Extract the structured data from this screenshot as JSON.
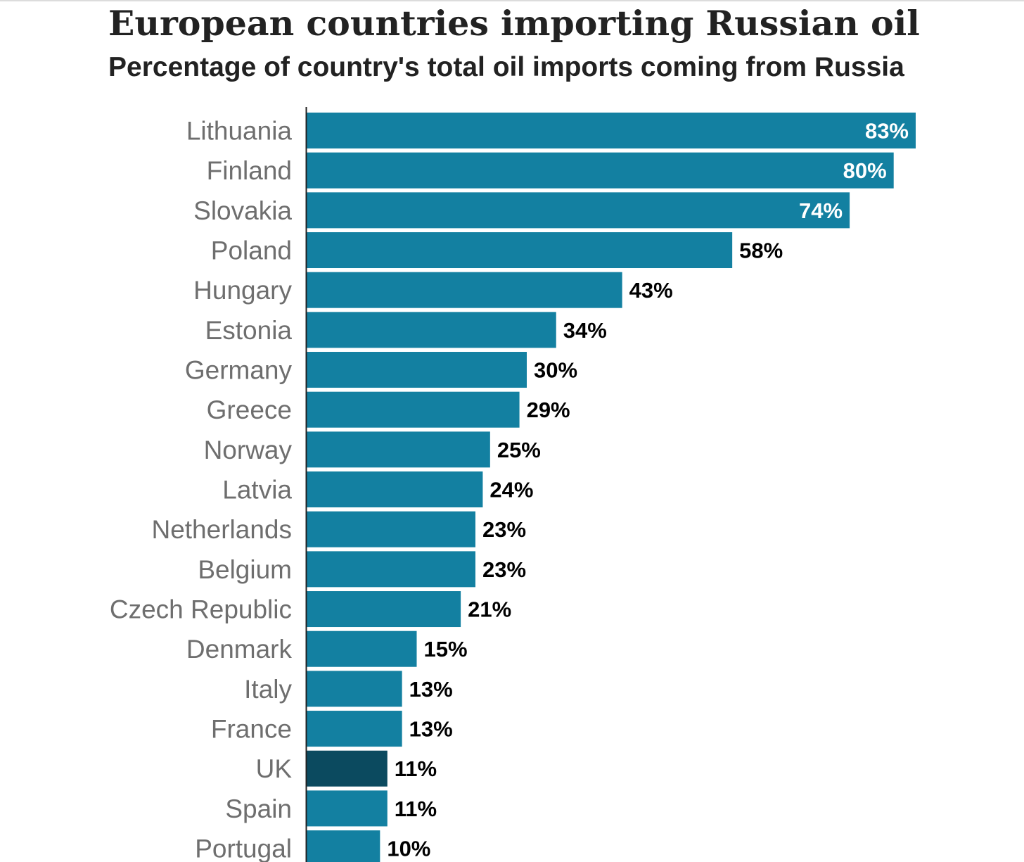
{
  "chart_data": {
    "type": "bar",
    "orientation": "horizontal",
    "title": "European countries importing Russian oil",
    "subtitle": "Percentage of country's total oil imports coming from Russia",
    "categories": [
      "Lithuania",
      "Finland",
      "Slovakia",
      "Poland",
      "Hungary",
      "Estonia",
      "Germany",
      "Greece",
      "Norway",
      "Latvia",
      "Netherlands",
      "Belgium",
      "Czech Republic",
      "Denmark",
      "Italy",
      "France",
      "UK",
      "Spain",
      "Portugal"
    ],
    "values": [
      83,
      80,
      74,
      58,
      43,
      34,
      30,
      29,
      25,
      24,
      23,
      23,
      21,
      15,
      13,
      13,
      11,
      11,
      10
    ],
    "value_labels": [
      "83%",
      "80%",
      "74%",
      "58%",
      "43%",
      "34%",
      "30%",
      "29%",
      "25%",
      "24%",
      "23%",
      "23%",
      "21%",
      "15%",
      "13%",
      "13%",
      "11%",
      "11%",
      "10%"
    ],
    "highlight_category": "UK",
    "xlim": [
      0,
      83
    ],
    "grid": false,
    "legend": "none",
    "colors": {
      "bar": "#1380a1",
      "highlight": "#0b4a5f",
      "label_inside": "#ffffff",
      "label_outside": "#000000",
      "axis": "#222222"
    }
  }
}
